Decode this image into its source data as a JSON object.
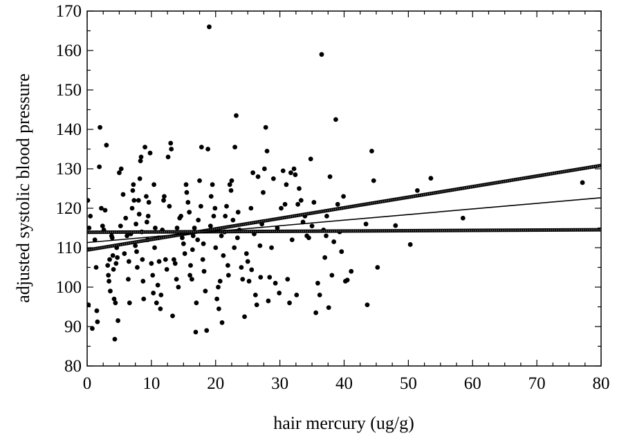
{
  "chart_data": {
    "type": "scatter",
    "title": "",
    "xlabel": "hair mercury (ug/g)",
    "ylabel": "adjusted systolic blood pressure",
    "xlim": [
      0,
      80
    ],
    "ylim": [
      80,
      170
    ],
    "xticks": [
      0,
      10,
      20,
      30,
      40,
      50,
      60,
      70,
      80
    ],
    "yticks": [
      80,
      90,
      100,
      110,
      120,
      130,
      140,
      150,
      160,
      170
    ],
    "grid": false,
    "legend": "none",
    "colors": {
      "points": "#000000",
      "line": "#000000",
      "band": "#555555"
    },
    "regression": {
      "fit": {
        "intercept": 111.3,
        "slope": 0.142
      },
      "upper_bound": {
        "intercept": 109.4,
        "slope": 0.268
      },
      "lower_bound": {
        "intercept": 113.9,
        "slope": 0.008
      }
    },
    "points": [
      [
        0.1,
        122
      ],
      [
        0.3,
        115
      ],
      [
        0.2,
        95.5
      ],
      [
        0.5,
        118
      ],
      [
        0.8,
        89.5
      ],
      [
        1.2,
        112
      ],
      [
        1.5,
        94
      ],
      [
        1.4,
        105
      ],
      [
        1.6,
        91.2
      ],
      [
        1.9,
        130.5
      ],
      [
        2.0,
        140.5
      ],
      [
        2.2,
        120
      ],
      [
        2.4,
        115.5
      ],
      [
        2.6,
        114.5
      ],
      [
        2.8,
        119.5
      ],
      [
        3.0,
        136
      ],
      [
        3.2,
        105.5
      ],
      [
        3.3,
        103
      ],
      [
        3.4,
        101.5
      ],
      [
        3.5,
        107
      ],
      [
        3.6,
        99
      ],
      [
        3.8,
        113
      ],
      [
        3.9,
        112.5
      ],
      [
        4.0,
        108
      ],
      [
        4.1,
        104.5
      ],
      [
        4.2,
        97
      ],
      [
        4.3,
        86.8
      ],
      [
        4.4,
        96
      ],
      [
        4.5,
        106
      ],
      [
        4.6,
        110
      ],
      [
        4.7,
        107.5
      ],
      [
        4.8,
        91.5
      ],
      [
        5.0,
        129
      ],
      [
        5.2,
        115.5
      ],
      [
        5.3,
        130
      ],
      [
        5.6,
        123.5
      ],
      [
        5.8,
        108.5
      ],
      [
        6.0,
        117.5
      ],
      [
        6.2,
        113
      ],
      [
        6.4,
        102
      ],
      [
        6.5,
        106.5
      ],
      [
        6.6,
        96
      ],
      [
        6.8,
        113.5
      ],
      [
        7.0,
        120
      ],
      [
        7.1,
        124.5
      ],
      [
        7.2,
        126
      ],
      [
        7.3,
        122
      ],
      [
        7.5,
        110.5
      ],
      [
        7.6,
        116
      ],
      [
        7.7,
        109
      ],
      [
        7.8,
        105
      ],
      [
        8.0,
        122
      ],
      [
        8.1,
        118.5
      ],
      [
        8.2,
        127.5
      ],
      [
        8.3,
        132
      ],
      [
        8.4,
        133
      ],
      [
        8.5,
        114
      ],
      [
        8.6,
        107
      ],
      [
        8.7,
        101.5
      ],
      [
        8.8,
        97
      ],
      [
        9.0,
        135.5
      ],
      [
        9.2,
        123
      ],
      [
        9.3,
        116.5
      ],
      [
        9.4,
        112
      ],
      [
        9.5,
        118
      ],
      [
        9.6,
        121.5
      ],
      [
        9.8,
        134
      ],
      [
        10.0,
        106
      ],
      [
        10.2,
        103
      ],
      [
        10.3,
        98.5
      ],
      [
        10.4,
        126
      ],
      [
        10.5,
        110
      ],
      [
        10.6,
        115
      ],
      [
        10.8,
        96
      ],
      [
        11.0,
        100.5
      ],
      [
        11.1,
        112.5
      ],
      [
        11.2,
        106.5
      ],
      [
        11.4,
        94.5
      ],
      [
        11.5,
        98
      ],
      [
        11.7,
        114.5
      ],
      [
        11.9,
        122
      ],
      [
        12.0,
        123
      ],
      [
        12.2,
        107
      ],
      [
        12.4,
        104.5
      ],
      [
        12.6,
        133
      ],
      [
        12.8,
        120.5
      ],
      [
        13.0,
        136.5
      ],
      [
        13.1,
        135
      ],
      [
        13.3,
        92.7
      ],
      [
        13.5,
        107
      ],
      [
        13.7,
        106
      ],
      [
        13.9,
        102
      ],
      [
        14.0,
        115
      ],
      [
        14.2,
        100
      ],
      [
        14.4,
        117.5
      ],
      [
        14.6,
        118
      ],
      [
        14.8,
        112.5
      ],
      [
        15.0,
        111
      ],
      [
        15.2,
        108.5
      ],
      [
        15.4,
        126
      ],
      [
        15.5,
        124
      ],
      [
        15.7,
        121.5
      ],
      [
        15.9,
        119
      ],
      [
        16.0,
        103
      ],
      [
        16.1,
        105.5
      ],
      [
        16.3,
        102
      ],
      [
        16.4,
        109.5
      ],
      [
        16.5,
        113
      ],
      [
        16.7,
        115
      ],
      [
        16.9,
        88.6
      ],
      [
        17.0,
        96
      ],
      [
        17.2,
        112
      ],
      [
        17.3,
        117
      ],
      [
        17.5,
        127
      ],
      [
        17.7,
        120.5
      ],
      [
        17.8,
        135.5
      ],
      [
        18.0,
        107
      ],
      [
        18.1,
        111
      ],
      [
        18.2,
        104
      ],
      [
        18.4,
        99
      ],
      [
        18.6,
        89
      ],
      [
        18.8,
        135
      ],
      [
        19.0,
        166
      ],
      [
        19.2,
        115.5
      ],
      [
        19.3,
        123
      ],
      [
        19.5,
        126
      ],
      [
        19.7,
        118
      ],
      [
        19.9,
        120
      ],
      [
        20.0,
        110
      ],
      [
        20.2,
        97
      ],
      [
        20.4,
        100
      ],
      [
        20.5,
        94.5
      ],
      [
        20.7,
        101.5
      ],
      [
        20.9,
        113
      ],
      [
        21.0,
        91
      ],
      [
        21.2,
        108
      ],
      [
        21.4,
        114
      ],
      [
        21.5,
        118
      ],
      [
        21.7,
        120.5
      ],
      [
        21.9,
        105.5
      ],
      [
        22.0,
        103
      ],
      [
        22.2,
        126
      ],
      [
        22.4,
        124.5
      ],
      [
        22.5,
        127
      ],
      [
        22.7,
        117
      ],
      [
        22.9,
        110
      ],
      [
        23.0,
        135.5
      ],
      [
        23.2,
        143.5
      ],
      [
        23.4,
        112.5
      ],
      [
        23.5,
        119
      ],
      [
        23.7,
        114.5
      ],
      [
        24.0,
        105
      ],
      [
        24.2,
        102
      ],
      [
        24.5,
        92.5
      ],
      [
        24.8,
        108.5
      ],
      [
        25.0,
        106.5
      ],
      [
        25.2,
        101.5
      ],
      [
        25.5,
        120
      ],
      [
        25.8,
        129
      ],
      [
        26.0,
        113.5
      ],
      [
        26.2,
        98
      ],
      [
        26.4,
        95.5
      ],
      [
        26.6,
        128
      ],
      [
        26.9,
        110.5
      ],
      [
        27.0,
        102.5
      ],
      [
        27.2,
        116
      ],
      [
        27.4,
        124
      ],
      [
        27.6,
        130
      ],
      [
        27.8,
        140.5
      ],
      [
        28.0,
        134.5
      ],
      [
        28.2,
        96.5
      ],
      [
        28.4,
        102.5
      ],
      [
        28.7,
        110
      ],
      [
        29.0,
        127.5
      ],
      [
        29.3,
        101
      ],
      [
        29.6,
        115
      ],
      [
        29.9,
        98.5
      ],
      [
        30.2,
        120
      ],
      [
        30.5,
        129.5
      ],
      [
        30.8,
        121
      ],
      [
        31.0,
        126
      ],
      [
        31.2,
        102
      ],
      [
        31.5,
        96
      ],
      [
        31.7,
        129
      ],
      [
        31.9,
        112
      ],
      [
        32.2,
        130
      ],
      [
        32.4,
        128.5
      ],
      [
        32.6,
        98
      ],
      [
        32.8,
        121
      ],
      [
        33.0,
        125
      ],
      [
        33.3,
        122
      ],
      [
        33.6,
        116.5
      ],
      [
        33.9,
        118
      ],
      [
        34.2,
        113
      ],
      [
        34.5,
        112.5
      ],
      [
        34.8,
        132.5
      ],
      [
        35.0,
        115.5
      ],
      [
        35.3,
        121.5
      ],
      [
        35.6,
        93.5
      ],
      [
        35.9,
        101
      ],
      [
        36.2,
        98
      ],
      [
        36.5,
        159
      ],
      [
        36.8,
        114.5
      ],
      [
        37.0,
        107.5
      ],
      [
        37.3,
        118
      ],
      [
        37.6,
        94.8
      ],
      [
        37.8,
        128
      ],
      [
        38.1,
        103
      ],
      [
        38.4,
        111.5
      ],
      [
        38.7,
        142.5
      ],
      [
        39.0,
        121
      ],
      [
        39.3,
        114
      ],
      [
        39.6,
        109
      ],
      [
        39.9,
        123
      ],
      [
        40.2,
        101.5
      ],
      [
        40.5,
        101.8
      ],
      [
        41.1,
        104
      ],
      [
        43.4,
        116
      ],
      [
        43.6,
        95.5
      ],
      [
        44.3,
        134.5
      ],
      [
        44.6,
        127
      ],
      [
        45.2,
        105
      ],
      [
        48.0,
        115.6
      ],
      [
        50.3,
        110.8
      ],
      [
        51.4,
        124.5
      ],
      [
        53.5,
        127.6
      ],
      [
        58.5,
        117.5
      ],
      [
        77.1,
        126.5
      ],
      [
        37.2,
        113
      ],
      [
        25.6,
        104.4
      ]
    ]
  }
}
